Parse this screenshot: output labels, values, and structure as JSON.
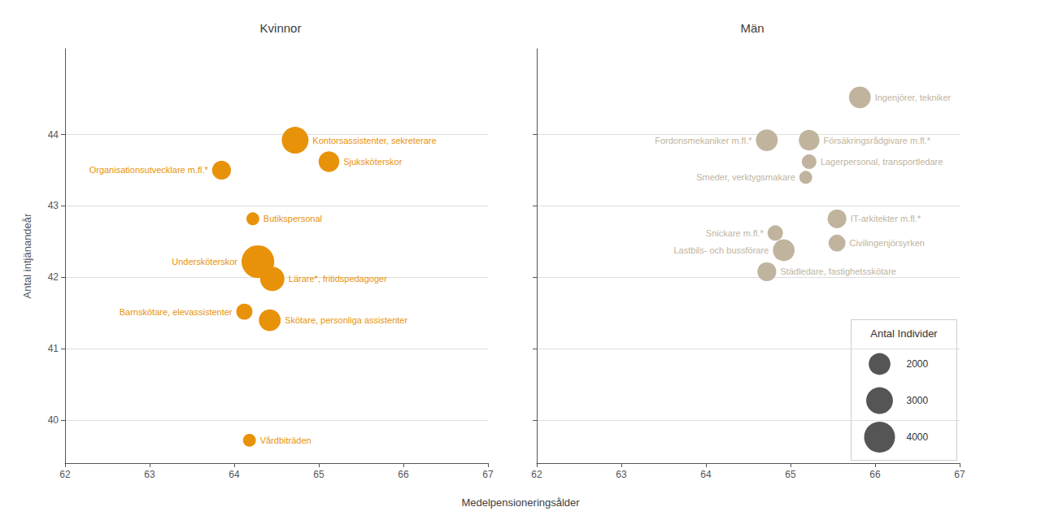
{
  "chart_data": [
    {
      "type": "scatter",
      "title": "Kvinnor",
      "xlabel": "Medelpensioneringsålder",
      "ylabel": "Antal intjänandeår",
      "color": "#E8920A",
      "labels": [
        "Kontorsassistenter, sekreterare",
        "Sjuksköterskor",
        "Organisationsutvecklare m.fl.*",
        "Butikspersonal",
        "Undersköterskor",
        "Lärare*, fritidspedagoger",
        "Barnskötare, elevassistenter",
        "Skötare, personliga assistenter",
        "Vårdbiträden"
      ],
      "x": [
        64.72,
        65.12,
        63.85,
        64.22,
        64.28,
        64.45,
        64.12,
        64.42,
        64.18
      ],
      "values": [
        43.92,
        43.62,
        43.5,
        42.82,
        42.22,
        41.98,
        41.52,
        41.4,
        39.72
      ],
      "sizes": [
        3000,
        1800,
        1500,
        700,
        4500,
        2500,
        1100,
        2000,
        700
      ],
      "xlim": [
        62,
        67
      ],
      "ylim": [
        39.4,
        45.2
      ],
      "xticks": [
        62,
        63,
        64,
        65,
        66,
        67
      ],
      "yticks": [
        40,
        41,
        42,
        43,
        44
      ],
      "grid": true
    },
    {
      "type": "scatter",
      "title": "Män",
      "color": "#C0B49E",
      "labels": [
        "Ingenjörer, tekniker",
        "Fordonsmekaniker m.fl.*",
        "Försäkringsrådgivare m.fl.*",
        "Lagerpersonal, transportledare",
        "Smeder, verktygsmakare",
        "IT-arkitekter m.fl.*",
        "Snickare m.fl.*",
        "Civilingenjörsyrken",
        "Lastbils- och bussförare",
        "Städledare, fastighetsskötare"
      ],
      "x": [
        65.82,
        64.72,
        65.22,
        65.22,
        65.18,
        65.55,
        64.82,
        65.55,
        64.92,
        64.72
      ],
      "values": [
        44.52,
        43.92,
        43.92,
        43.62,
        43.4,
        42.82,
        42.62,
        42.48,
        42.38,
        42.08
      ],
      "sizes": [
        2000,
        2000,
        1800,
        900,
        700,
        1500,
        1000,
        1200,
        2000,
        1500
      ],
      "xlim": [
        62,
        67
      ],
      "ylim": [
        39.4,
        45.2
      ],
      "xticks": [
        62,
        63,
        64,
        65,
        66,
        67
      ],
      "yticks": [
        40,
        41,
        42,
        43,
        44
      ],
      "grid": true,
      "tick_labels": "x",
      "legend": "lower right",
      "legend_title": "Antal Individer",
      "legend_sizes": [
        2000,
        3000,
        4000
      ]
    }
  ]
}
